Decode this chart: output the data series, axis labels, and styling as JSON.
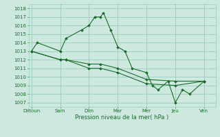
{
  "xlabel": "Pression niveau de la mer( hPa )",
  "xtick_labels": [
    "Diitoun",
    "Sam",
    "Dim",
    "Mar",
    "Mer",
    "Jeu",
    "Ven"
  ],
  "xtick_positions": [
    0,
    2,
    4,
    6,
    8,
    10,
    12
  ],
  "ylim": [
    1006.5,
    1018.5
  ],
  "yticks": [
    1007,
    1008,
    1009,
    1010,
    1011,
    1012,
    1013,
    1014,
    1015,
    1016,
    1017,
    1018
  ],
  "xlim": [
    -0.2,
    12.8
  ],
  "bg_color": "#cce8df",
  "grid_color": "#99ccbb",
  "line_color": "#1a6b2a",
  "lines": [
    {
      "x": [
        0,
        0.4,
        2.0,
        2.4,
        3.5,
        4.0,
        4.4,
        4.8,
        5.0,
        5.5,
        6.0,
        6.5,
        7.0,
        8.0,
        8.4,
        8.8,
        9.5,
        10.0,
        10.5,
        11.0,
        12.0
      ],
      "y": [
        1013,
        1014,
        1013,
        1014.5,
        1015.5,
        1016,
        1017,
        1017,
        1017.5,
        1015.5,
        1013.5,
        1013,
        1011,
        1010.5,
        1009,
        1008.5,
        1009.5,
        1007,
        1008.5,
        1008,
        1009.5
      ]
    },
    {
      "x": [
        0,
        2.0,
        2.4,
        4.0,
        4.8,
        6.0,
        8.0,
        10.0,
        12.0
      ],
      "y": [
        1013,
        1012,
        1012,
        1011,
        1011,
        1010.5,
        1009.2,
        1009.0,
        1009.5
      ]
    },
    {
      "x": [
        0,
        2.0,
        2.4,
        4.0,
        4.8,
        6.0,
        8.0,
        10.0,
        12.0
      ],
      "y": [
        1013,
        1012,
        1012,
        1011.5,
        1011.5,
        1011.0,
        1009.7,
        1009.5,
        1009.5
      ]
    }
  ]
}
